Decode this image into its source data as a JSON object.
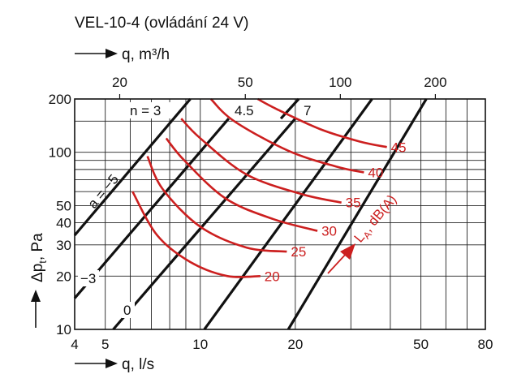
{
  "chart_data": {
    "type": "line",
    "title": "VEL-10-4 (ovládání 24 V)",
    "xlabel_top": "q, m³/h",
    "xlabel": "q, l/s",
    "ylabel": "Δp",
    "ylabel_sub": "t",
    "ylabel_unit": ", Pa",
    "x_scale": "log",
    "y_scale": "log",
    "xlim": [
      4,
      80
    ],
    "ylim": [
      10,
      200
    ],
    "grid": true,
    "x_ticks": [
      4,
      5,
      10,
      20,
      50,
      80
    ],
    "x_tick_labels": [
      "4",
      "5",
      "10",
      "20",
      "50",
      "80"
    ],
    "y_ticks": [
      10,
      20,
      30,
      40,
      50,
      100,
      200
    ],
    "y_tick_labels": [
      "10",
      "20",
      "30",
      "40",
      "50",
      "100",
      "200"
    ],
    "x_top_ticks_m3h": [
      20,
      50,
      100,
      200
    ],
    "x_top_tick_labels": [
      "20",
      "50",
      "100",
      "200"
    ],
    "colors": {
      "blade_lines": "#111111",
      "noise_curves": "#cc1f1f"
    },
    "blade_lines": [
      {
        "label": "a = −5",
        "points": [
          [
            4,
            34
          ],
          [
            9.3,
            200
          ]
        ]
      },
      {
        "label": "−3",
        "points": [
          [
            4,
            15
          ],
          [
            12.3,
            155
          ]
        ]
      },
      {
        "label": "0",
        "points": [
          [
            5.3,
            10
          ],
          [
            20,
            155
          ]
        ]
      },
      {
        "label": "n = 3",
        "points": [
          [
            10.3,
            10
          ],
          [
            35,
            200
          ]
        ]
      },
      {
        "label": "4.5",
        "points": [
          [
            19,
            10
          ],
          [
            52,
            200
          ]
        ]
      },
      {
        "label": "7",
        "points": [
          [
            18,
            155
          ],
          [
            20.5,
            200
          ]
        ]
      }
    ],
    "noise_series": [
      {
        "name": "20",
        "x": [
          6.1,
          7.3,
          9.3,
          12.2,
          15.5
        ],
        "y": [
          60,
          34,
          24,
          20,
          20
        ]
      },
      {
        "name": "25",
        "x": [
          6.8,
          7.6,
          10,
          14,
          18.8
        ],
        "y": [
          95,
          62,
          38,
          29,
          27.5
        ]
      },
      {
        "name": "30",
        "x": [
          7.8,
          8.9,
          12,
          17,
          23.5
        ],
        "y": [
          120,
          90,
          55,
          42,
          36
        ]
      },
      {
        "name": "35",
        "x": [
          8.7,
          10,
          14,
          21,
          28
        ],
        "y": [
          155,
          120,
          75,
          58,
          52
        ]
      },
      {
        "name": "40",
        "x": [
          10.8,
          12.8,
          19,
          27,
          33
        ],
        "y": [
          200,
          150,
          102,
          83,
          77
        ]
      },
      {
        "name": "45",
        "x": [
          15.2,
          17.5,
          24,
          32,
          39
        ],
        "y": [
          200,
          175,
          135,
          115,
          107
        ]
      }
    ],
    "annotations": {
      "n3": "n = 3",
      "n45": "4.5",
      "n7": "7",
      "a5": "a = −5",
      "am3": "−3",
      "a0": "0",
      "la_prefix": "L",
      "la_sub": "A",
      "la_suffix": ", dB(A)"
    }
  }
}
